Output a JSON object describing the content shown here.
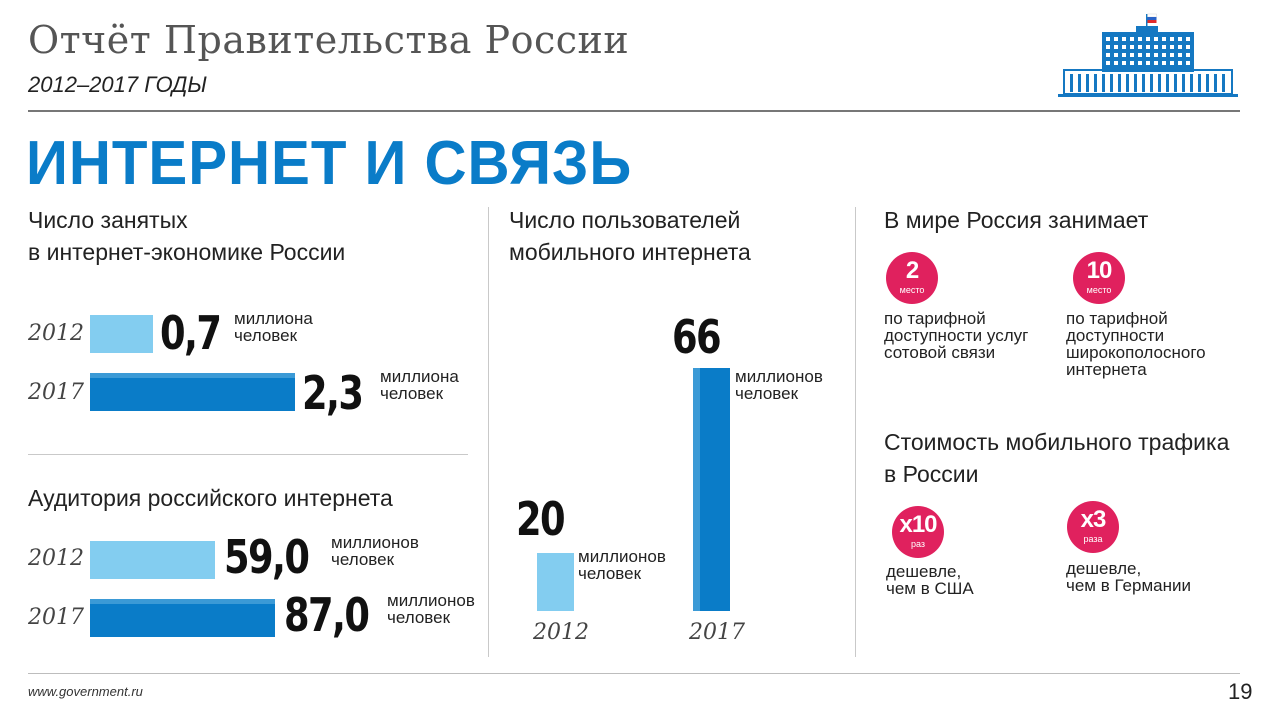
{
  "header": {
    "title": "Отчёт Правительства России",
    "subtitle": "2012–2017 ГОДЫ"
  },
  "section_title": "ИНТЕРНЕТ И СВЯЗЬ",
  "colors": {
    "accent": "#0a7cc8",
    "light_bar": "#83cdf0",
    "dark_bar": "#0a7cc8",
    "circle": "#e0215e"
  },
  "employment": {
    "heading_line1": "Число занятых",
    "heading_line2": "в интернет-экономике России",
    "rows": [
      {
        "year": "2012",
        "value": "0,7",
        "unit1": "миллиона",
        "unit2": "человек"
      },
      {
        "year": "2017",
        "value": "2,3",
        "unit1": "миллиона",
        "unit2": "человек"
      }
    ]
  },
  "audience": {
    "heading": "Аудитория российского интернета",
    "rows": [
      {
        "year": "2012",
        "value": "59,0",
        "unit1": "миллионов",
        "unit2": "человек"
      },
      {
        "year": "2017",
        "value": "87,0",
        "unit1": "миллионов",
        "unit2": "человек"
      }
    ]
  },
  "mobile": {
    "heading_line1": "Число пользователей",
    "heading_line2": "мобильного интернета",
    "bars": [
      {
        "year": "2012",
        "value": "20",
        "unit1": "миллионов",
        "unit2": "человек"
      },
      {
        "year": "2017",
        "value": "66",
        "unit1": "миллионов",
        "unit2": "человек"
      }
    ]
  },
  "world_rank": {
    "heading": "В мире Россия занимает",
    "items": [
      {
        "number": "2",
        "caption": "место",
        "desc1": "по тарифной",
        "desc2": "доступности услуг",
        "desc3": "сотовой связи"
      },
      {
        "number": "10",
        "caption": "место",
        "desc1": "по тарифной",
        "desc2": "доступности",
        "desc3": "широкополосного",
        "desc4": "интернета"
      }
    ]
  },
  "traffic_cost": {
    "heading_line1": "Стоимость мобильного трафика",
    "heading_line2": "в России",
    "items": [
      {
        "number": "x10",
        "caption": "раз",
        "desc1": "дешевле,",
        "desc2": "чем в США"
      },
      {
        "number": "x3",
        "caption": "раза",
        "desc1": "дешевле,",
        "desc2": "чем в Германии"
      }
    ]
  },
  "footer": {
    "url": "www.government.ru",
    "page": "19"
  },
  "chart_data": [
    {
      "type": "bar",
      "orientation": "horizontal",
      "title": "Число занятых в интернет-экономике России",
      "categories": [
        "2012",
        "2017"
      ],
      "values": [
        0.7,
        2.3
      ],
      "unit": "миллиона человек"
    },
    {
      "type": "bar",
      "orientation": "horizontal",
      "title": "Аудитория российского интернета",
      "categories": [
        "2012",
        "2017"
      ],
      "values": [
        59.0,
        87.0
      ],
      "unit": "миллионов человек"
    },
    {
      "type": "bar",
      "orientation": "vertical",
      "title": "Число пользователей мобильного интернета",
      "categories": [
        "2012",
        "2017"
      ],
      "values": [
        20,
        66
      ],
      "unit": "миллионов человек"
    }
  ]
}
